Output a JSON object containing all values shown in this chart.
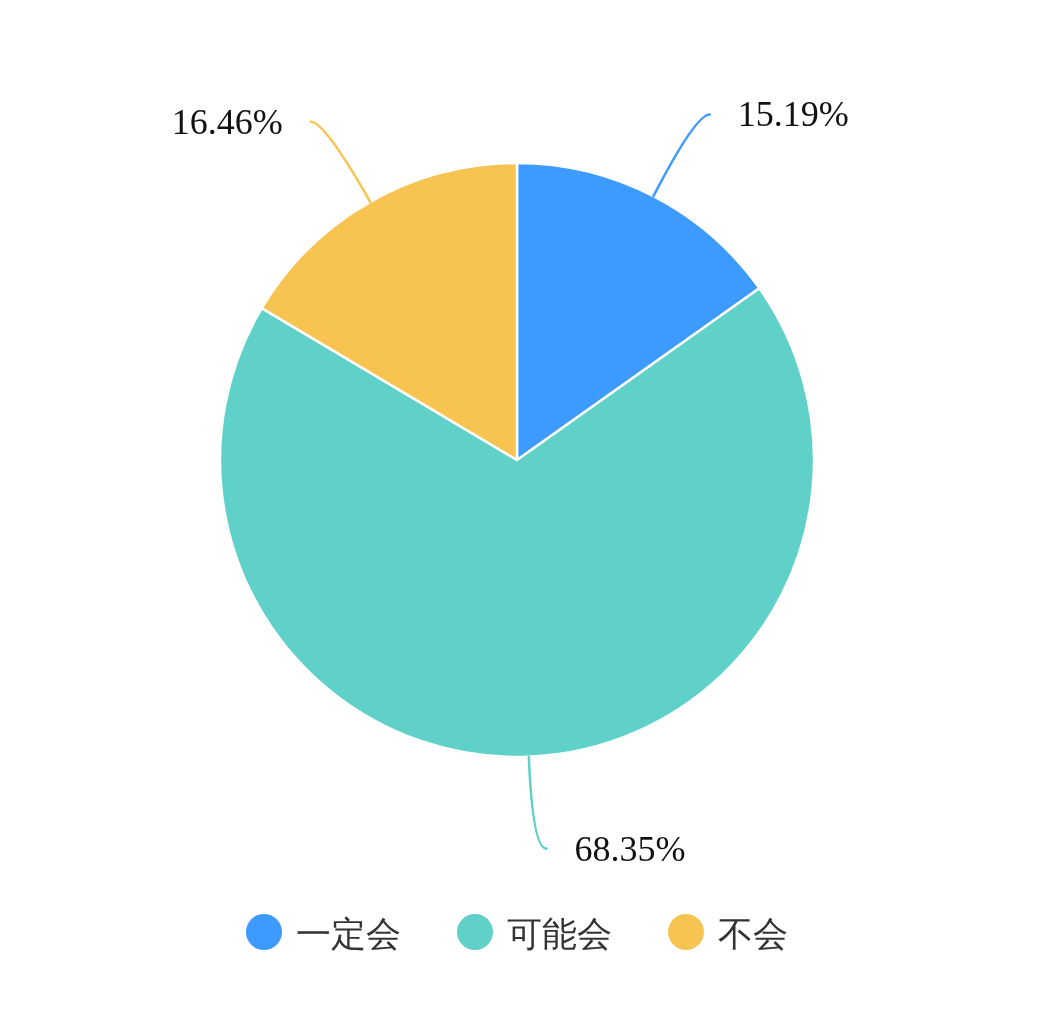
{
  "chart_data": {
    "type": "pie",
    "categories": [
      "一定会",
      "可能会",
      "不会"
    ],
    "values": [
      15.19,
      68.35,
      16.46
    ],
    "colors": [
      "#3d9bff",
      "#5fd1c8",
      "#f7c452"
    ],
    "value_labels": [
      "15.19%",
      "68.35%",
      "16.46%"
    ],
    "legend": "bottom"
  }
}
